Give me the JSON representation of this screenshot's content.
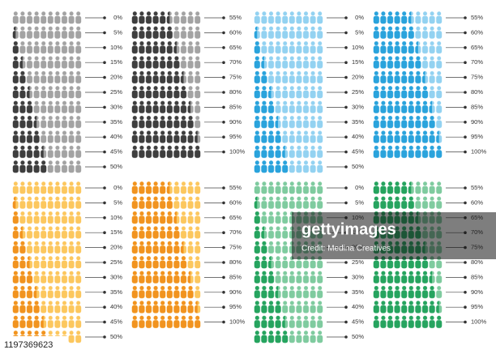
{
  "panels": [
    {
      "light": "#a3a3a3",
      "dark": "#3e3e3e",
      "columns": [
        [
          {
            "label": "0%",
            "value": 0
          },
          {
            "label": "5%",
            "value": 5
          },
          {
            "label": "10%",
            "value": 10
          },
          {
            "label": "15%",
            "value": 15
          },
          {
            "label": "20%",
            "value": 20
          },
          {
            "label": "25%",
            "value": 25
          },
          {
            "label": "30%",
            "value": 30
          },
          {
            "label": "35%",
            "value": 35
          },
          {
            "label": "40%",
            "value": 40
          },
          {
            "label": "45%",
            "value": 45
          },
          {
            "label": "50%",
            "value": 50
          }
        ],
        [
          {
            "label": "55%",
            "value": 55
          },
          {
            "label": "60%",
            "value": 60
          },
          {
            "label": "65%",
            "value": 65
          },
          {
            "label": "70%",
            "value": 70
          },
          {
            "label": "75%",
            "value": 75
          },
          {
            "label": "80%",
            "value": 80
          },
          {
            "label": "85%",
            "value": 85
          },
          {
            "label": "90%",
            "value": 90
          },
          {
            "label": "95%",
            "value": 95
          },
          {
            "label": "100%",
            "value": 100
          }
        ]
      ]
    },
    {
      "light": "#93d2f1",
      "dark": "#2aa3dc",
      "columns": [
        [
          {
            "label": "0%",
            "value": 0
          },
          {
            "label": "5%",
            "value": 5
          },
          {
            "label": "10%",
            "value": 10
          },
          {
            "label": "15%",
            "value": 15
          },
          {
            "label": "20%",
            "value": 20
          },
          {
            "label": "25%",
            "value": 25
          },
          {
            "label": "30%",
            "value": 30
          },
          {
            "label": "35%",
            "value": 35
          },
          {
            "label": "40%",
            "value": 40
          },
          {
            "label": "45%",
            "value": 45
          },
          {
            "label": "50%",
            "value": 50
          }
        ],
        [
          {
            "label": "55%",
            "value": 55
          },
          {
            "label": "60%",
            "value": 60
          },
          {
            "label": "65%",
            "value": 65
          },
          {
            "label": "70%",
            "value": 70
          },
          {
            "label": "75%",
            "value": 75
          },
          {
            "label": "80%",
            "value": 80
          },
          {
            "label": "85%",
            "value": 85
          },
          {
            "label": "90%",
            "value": 90
          },
          {
            "label": "95%",
            "value": 95
          },
          {
            "label": "100%",
            "value": 100
          }
        ]
      ]
    },
    {
      "light": "#fcc75e",
      "dark": "#f1931f",
      "columns": [
        [
          {
            "label": "0%",
            "value": 0
          },
          {
            "label": "5%",
            "value": 5
          },
          {
            "label": "10%",
            "value": 10
          },
          {
            "label": "15%",
            "value": 15
          },
          {
            "label": "20%",
            "value": 20
          },
          {
            "label": "25%",
            "value": 25
          },
          {
            "label": "30%",
            "value": 30
          },
          {
            "label": "35%",
            "value": 35
          },
          {
            "label": "40%",
            "value": 40
          },
          {
            "label": "45%",
            "value": 45
          },
          {
            "label": "50%",
            "value": 50
          }
        ],
        [
          {
            "label": "55%",
            "value": 55
          },
          {
            "label": "60%",
            "value": 60
          },
          {
            "label": "65%",
            "value": 65
          },
          {
            "label": "70%",
            "value": 70
          },
          {
            "label": "75%",
            "value": 75
          },
          {
            "label": "80%",
            "value": 80
          },
          {
            "label": "85%",
            "value": 85
          },
          {
            "label": "90%",
            "value": 90
          },
          {
            "label": "95%",
            "value": 95
          },
          {
            "label": "100%",
            "value": 100
          }
        ]
      ]
    },
    {
      "light": "#7fcb9f",
      "dark": "#26a45f",
      "columns": [
        [
          {
            "label": "0%",
            "value": 0
          },
          {
            "label": "5%",
            "value": 5
          },
          {
            "label": "10%",
            "value": 10
          },
          {
            "label": "15%",
            "value": 15
          },
          {
            "label": "20%",
            "value": 20
          },
          {
            "label": "25%",
            "value": 25
          },
          {
            "label": "30%",
            "value": 30
          },
          {
            "label": "35%",
            "value": 35
          },
          {
            "label": "40%",
            "value": 40
          },
          {
            "label": "45%",
            "value": 45
          },
          {
            "label": "50%",
            "value": 50
          }
        ],
        [
          {
            "label": "55%",
            "value": 55
          },
          {
            "label": "60%",
            "value": 60
          },
          {
            "label": "65%",
            "value": 65
          },
          {
            "label": "70%",
            "value": 70
          },
          {
            "label": "75%",
            "value": 75
          },
          {
            "label": "80%",
            "value": 80
          },
          {
            "label": "85%",
            "value": 85
          },
          {
            "label": "90%",
            "value": 90
          },
          {
            "label": "95%",
            "value": 95
          },
          {
            "label": "100%",
            "value": 100
          }
        ]
      ]
    }
  ],
  "watermark": {
    "brand": "gettyimages",
    "credit": "Credit: Medina Creatives",
    "id": "1197369623"
  }
}
